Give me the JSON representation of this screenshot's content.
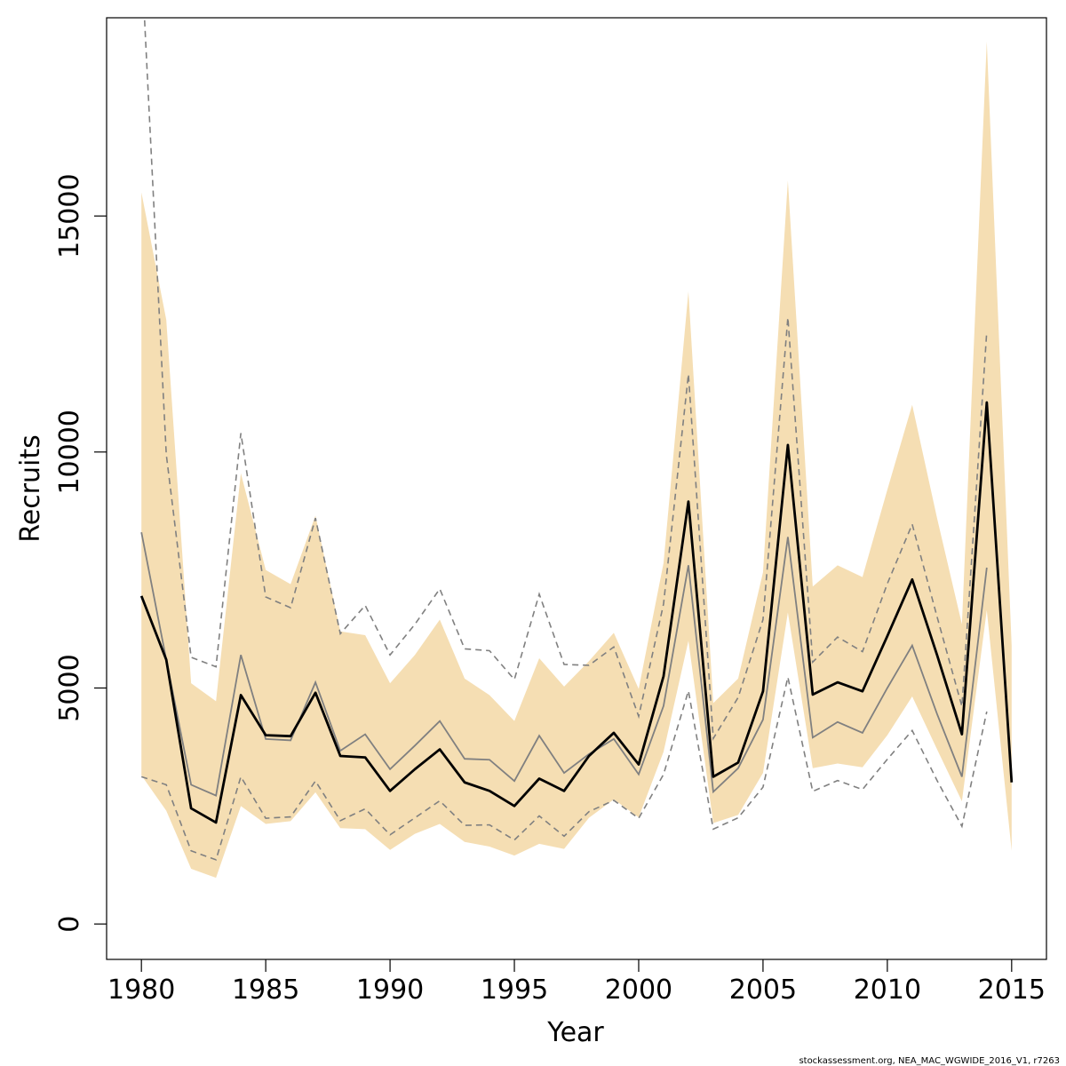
{
  "chart_data": {
    "type": "line",
    "xlabel": "Year",
    "ylabel": "Recruits",
    "xlim": [
      1978.6,
      2016.4
    ],
    "ylim": [
      -750,
      19200
    ],
    "xticks": [
      "1980",
      "1985",
      "1990",
      "1995",
      "2000",
      "2005",
      "2010",
      "2015"
    ],
    "yticks": [
      "0",
      "5000",
      "10000",
      "15000"
    ],
    "footer": "stockassessment.org, NEA_MAC_WGWIDE_2016_V1, r7263",
    "colors": {
      "band": "#f5deb3",
      "estimate": "#000000",
      "comparison": "#808080",
      "comparison_ci": "#808080"
    },
    "x": [
      1980,
      1981,
      1982,
      1983,
      1984,
      1985,
      1986,
      1987,
      1988,
      1989,
      1990,
      1991,
      1992,
      1993,
      1994,
      1995,
      1996,
      1997,
      1998,
      1999,
      2000,
      2001,
      2002,
      2003,
      2004,
      2005,
      2006,
      2007,
      2008,
      2009,
      2010,
      2011,
      2012,
      2013,
      2014,
      2015
    ],
    "series": [
      {
        "role": "estimate",
        "values": [
          6950,
          5600,
          2450,
          2150,
          4850,
          4000,
          3980,
          4900,
          3560,
          3530,
          2820,
          3280,
          3700,
          3000,
          2820,
          2500,
          3080,
          2820,
          3560,
          4050,
          3380,
          5250,
          8950,
          3120,
          3420,
          4930,
          10150,
          4860,
          5120,
          4930,
          6100,
          7300,
          5700,
          4020,
          11050,
          3000
        ]
      },
      {
        "role": "band",
        "upper": [
          15500,
          12800,
          5100,
          4720,
          9550,
          7500,
          7200,
          8650,
          6200,
          6120,
          5100,
          5700,
          6450,
          5200,
          4850,
          4300,
          5630,
          5030,
          5570,
          6170,
          4980,
          7650,
          13400,
          4680,
          5200,
          7450,
          15750,
          7150,
          7600,
          7350,
          9200,
          11000,
          8600,
          6350,
          18700,
          5900
        ],
        "lower": [
          3150,
          2400,
          1170,
          980,
          2500,
          2120,
          2180,
          2790,
          2030,
          2010,
          1570,
          1910,
          2120,
          1740,
          1640,
          1450,
          1700,
          1590,
          2250,
          2640,
          2260,
          3650,
          6000,
          2140,
          2310,
          3200,
          6600,
          3300,
          3400,
          3320,
          4000,
          4820,
          3700,
          2600,
          6650,
          1550
        ]
      },
      {
        "role": "comparison",
        "values": [
          8300,
          5600,
          2950,
          2720,
          5700,
          3920,
          3890,
          5120,
          3670,
          4020,
          3280,
          3780,
          4300,
          3500,
          3480,
          3030,
          3990,
          3200,
          3600,
          3920,
          3170,
          4620,
          7600,
          2800,
          3300,
          4330,
          8200,
          3950,
          4280,
          4050,
          5000,
          5900,
          4450,
          3120,
          7550,
          null
        ]
      },
      {
        "role": "comparison_ci_upper",
        "values": [
          20500,
          9950,
          5650,
          5450,
          10400,
          6930,
          6700,
          8600,
          6150,
          6750,
          5700,
          6350,
          7100,
          5830,
          5790,
          5180,
          6990,
          5500,
          5480,
          5870,
          4400,
          6780,
          11650,
          3930,
          4800,
          6450,
          12850,
          5550,
          6080,
          5770,
          7210,
          8470,
          6510,
          4610,
          12560,
          null
        ]
      },
      {
        "role": "comparison_ci_lower",
        "values": [
          3120,
          2950,
          1550,
          1360,
          3120,
          2240,
          2270,
          3030,
          2190,
          2440,
          1890,
          2250,
          2610,
          2090,
          2100,
          1780,
          2290,
          1860,
          2380,
          2620,
          2240,
          3170,
          4940,
          2010,
          2250,
          2900,
          5230,
          2810,
          3040,
          2850,
          3490,
          4100,
          3040,
          2070,
          4500,
          null
        ]
      }
    ]
  }
}
